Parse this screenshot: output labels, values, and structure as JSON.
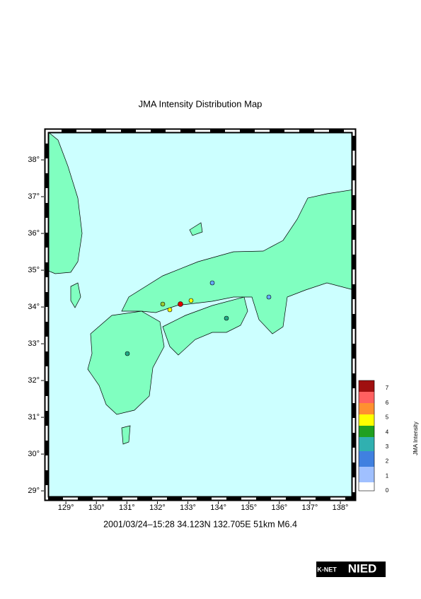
{
  "title": "JMA Intensity Distribution Map",
  "map": {
    "xlim": [
      128.37,
      138.44
    ],
    "ylim": [
      28.79,
      38.79
    ],
    "xticks": [
      {
        "value": 129,
        "label": "129°"
      },
      {
        "value": 130,
        "label": "130°"
      },
      {
        "value": 131,
        "label": "131°"
      },
      {
        "value": 132,
        "label": "132°"
      },
      {
        "value": 133,
        "label": "133°"
      },
      {
        "value": 134,
        "label": "134°"
      },
      {
        "value": 135,
        "label": "135°"
      },
      {
        "value": 136,
        "label": "136°"
      },
      {
        "value": 137,
        "label": "137°"
      },
      {
        "value": 138,
        "label": "138°"
      }
    ],
    "yticks": [
      {
        "value": 29,
        "label": "29°"
      },
      {
        "value": 30,
        "label": "30°"
      },
      {
        "value": 31,
        "label": "31°"
      },
      {
        "value": 32,
        "label": "32°"
      },
      {
        "value": 33,
        "label": "33°"
      },
      {
        "value": 34,
        "label": "34°"
      },
      {
        "value": 35,
        "label": "35°"
      },
      {
        "value": 36,
        "label": "36°"
      },
      {
        "value": 37,
        "label": "37°"
      },
      {
        "value": 38,
        "label": "38°"
      }
    ]
  },
  "caption": "2001/03/24–15:28 34.123N 132.705E 51km M6.4",
  "legend": {
    "title": "JMA Intensity",
    "labels": [
      7,
      6,
      5,
      4,
      3,
      2,
      1,
      0
    ]
  },
  "logo": {
    "k_net": "K-NET",
    "nied": "NIED"
  }
}
